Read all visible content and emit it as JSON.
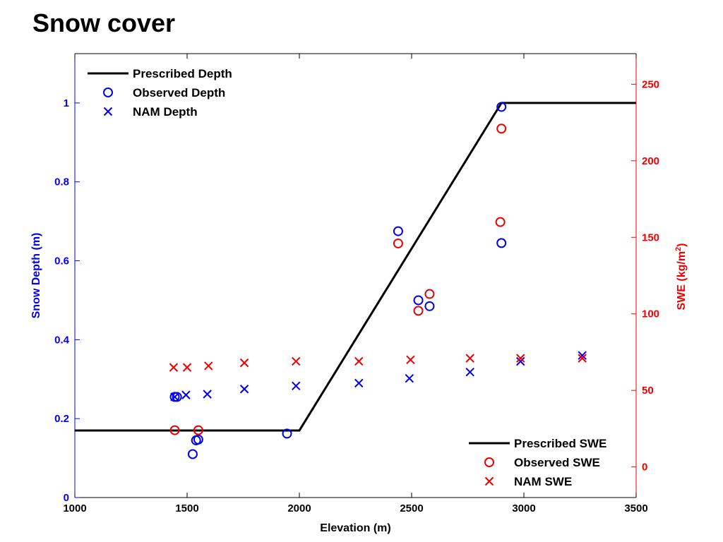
{
  "slide": {
    "title": "Snow cover"
  },
  "colors": {
    "depth": "#0000ee",
    "swe": "#ee0000",
    "prescribed": "#000000"
  },
  "chart_data": {
    "type": "scatter",
    "xlabel": "Elevation (m)",
    "ylabel_left": "Snow Depth (m)",
    "ylabel_right_base": "SWE (kg/m",
    "ylabel_right_sup": "2",
    "ylabel_right_tail": ")",
    "xlim": [
      1000,
      3500
    ],
    "ylim_left": [
      0,
      1.125
    ],
    "ylim_right": [
      -20,
      270
    ],
    "x_ticks": [
      1000,
      1500,
      2000,
      2500,
      3000,
      3500
    ],
    "x_tick_labels": [
      "1000",
      "1500",
      "2000",
      "2500",
      "3000",
      "3500"
    ],
    "y_left_ticks": [
      0,
      0.2,
      0.4,
      0.6,
      0.8,
      1
    ],
    "y_left_tick_labels": [
      "0",
      "0.2",
      "0.4",
      "0.6",
      "0.8",
      "1"
    ],
    "y_right_ticks": [
      0,
      50,
      100,
      150,
      200,
      250
    ],
    "y_right_tick_labels": [
      "0",
      "50",
      "100",
      "150",
      "200",
      "250"
    ],
    "grid": false,
    "legend_top_left": [
      {
        "label": "Prescribed Depth",
        "marker": "line",
        "color": "#000000"
      },
      {
        "label": "Observed Depth",
        "marker": "circle",
        "color": "#0000ee"
      },
      {
        "label": "NAM Depth",
        "marker": "x",
        "color": "#0000ee"
      }
    ],
    "legend_bottom_right": [
      {
        "label": "Prescribed SWE",
        "marker": "line",
        "color": "#000000"
      },
      {
        "label": "Observed SWE",
        "marker": "circle",
        "color": "#ee0000"
      },
      {
        "label": "NAM SWE",
        "marker": "x",
        "color": "#ee0000"
      }
    ],
    "series": [
      {
        "name": "Prescribed Depth",
        "axis": "left",
        "style": "line",
        "x": [
          1000,
          2000,
          2900,
          3500
        ],
        "y": [
          0.17,
          0.17,
          1.0,
          1.0
        ]
      },
      {
        "name": "Observed Depth",
        "axis": "left",
        "style": "circle",
        "x": [
          1445,
          1455,
          1525,
          1540,
          1550,
          1945,
          2440,
          2530,
          2580,
          2900,
          2900
        ],
        "y": [
          0.255,
          0.255,
          0.11,
          0.145,
          0.147,
          0.162,
          0.675,
          0.5,
          0.485,
          0.645,
          0.99
        ]
      },
      {
        "name": "NAM Depth",
        "axis": "left",
        "style": "x",
        "x": [
          1445,
          1495,
          1590,
          1755,
          1985,
          2265,
          2490,
          2760,
          2985,
          3260
        ],
        "y": [
          0.255,
          0.26,
          0.262,
          0.275,
          0.283,
          0.29,
          0.302,
          0.318,
          0.345,
          0.36
        ]
      },
      {
        "name": "Observed SWE",
        "axis": "right",
        "style": "circle",
        "x": [
          1445,
          1550,
          2440,
          2530,
          2580,
          2895,
          2900
        ],
        "y": [
          24,
          24,
          146,
          102,
          113,
          160,
          221
        ]
      },
      {
        "name": "NAM SWE",
        "axis": "right",
        "style": "x",
        "x": [
          1440,
          1500,
          1595,
          1755,
          1985,
          2265,
          2495,
          2760,
          2985,
          3260
        ],
        "y": [
          65,
          65,
          66,
          68,
          69,
          69,
          70,
          71,
          71,
          71
        ]
      }
    ]
  }
}
